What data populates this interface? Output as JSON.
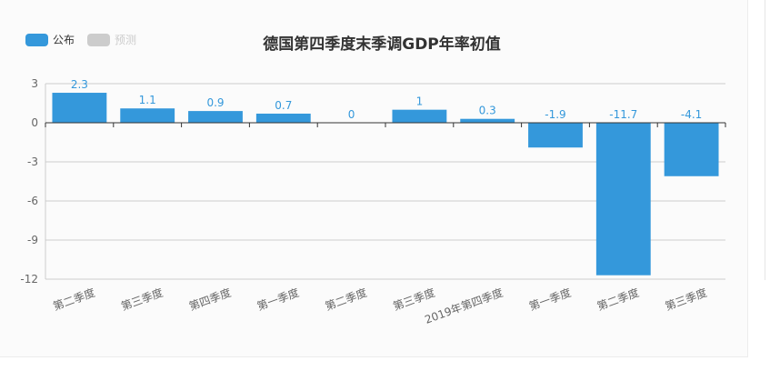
{
  "colors": {
    "primary": "#3498db",
    "inactive": "#cccccc",
    "axis": "#333333",
    "grid": "#cccccc",
    "text": "#666666"
  },
  "legend": [
    {
      "label": "公布",
      "color": "#3498db",
      "active": true
    },
    {
      "label": "预测",
      "color": "#cccccc",
      "active": false
    }
  ],
  "chart_data": {
    "type": "bar",
    "title": "德国第四季度末季调GDP年率初值",
    "categories": [
      "第二季度",
      "第三季度",
      "第四季度",
      "第一季度",
      "第二季度",
      "第三季度",
      "2019年第四季度",
      "第一季度",
      "第二季度",
      "第三季度"
    ],
    "series": [
      {
        "name": "公布",
        "values": [
          2.3,
          1.1,
          0.9,
          0.7,
          0,
          1,
          0.3,
          -1.9,
          -11.7,
          -4.1
        ]
      }
    ],
    "data_labels": [
      "2.3",
      "1.1",
      "0.9",
      "0.7",
      "0",
      "1",
      "0.3",
      "-1.9",
      "-11.7",
      "-4.1"
    ],
    "yticks": [
      "3",
      "0",
      "-3",
      "-6",
      "-9",
      "-12"
    ],
    "ylim": [
      -12,
      3
    ],
    "grid": true,
    "legend_position": "top-left",
    "xlabel": "",
    "ylabel": ""
  }
}
